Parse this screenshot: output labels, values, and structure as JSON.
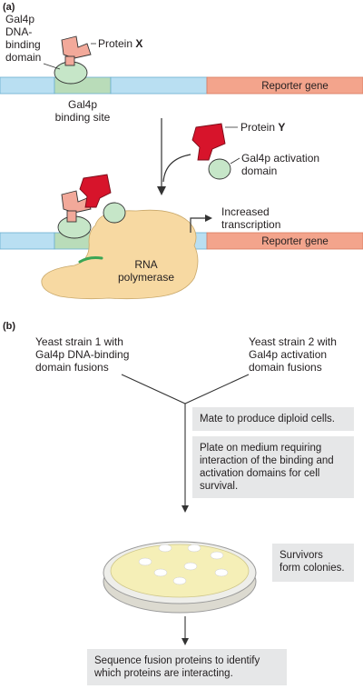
{
  "colors": {
    "dna_blue": "#b9dff2",
    "binding_site": "#b9dcb9",
    "reporter_red": "#f3a48c",
    "activation_green": "#c6e6c8",
    "protein_x": "#f2a99a",
    "protein_y": "#d7142b",
    "polymerase": "#f7d9a2",
    "box_gray": "#e6e7e8",
    "plate_agar": "#f5efb7"
  },
  "panel_a": {
    "label": "(a)",
    "gal4p_dna_binding_domain": [
      "Gal4p",
      "DNA-",
      "binding",
      "domain"
    ],
    "protein_x_prefix": "Protein ",
    "protein_x_letter": "X",
    "reporter_gene_top": "Reporter gene",
    "gal4p_binding_site": [
      "Gal4p",
      "binding site"
    ],
    "protein_y_prefix": "Protein ",
    "protein_y_letter": "Y",
    "gal4p_activation_domain": [
      "Gal4p activation",
      "domain"
    ],
    "increased_transcription": [
      "Increased",
      "transcription"
    ],
    "reporter_gene_bottom": "Reporter gene",
    "rna_polymerase": [
      "RNA",
      "polymerase"
    ]
  },
  "panel_b": {
    "label": "(b)",
    "strain_1": [
      "Yeast strain 1 with",
      "Gal4p DNA-binding",
      "domain fusions"
    ],
    "strain_2": [
      "Yeast strain 2 with",
      "Gal4p activation",
      "domain fusions"
    ],
    "step_mate": "Mate to produce diploid cells.",
    "step_plate": [
      "Plate on medium requiring",
      "interaction of the binding and",
      "activation domains for cell",
      "survival."
    ],
    "survivors": [
      "Survivors",
      "form colonies."
    ],
    "sequence": [
      "Sequence fusion proteins to identify",
      "which proteins are interacting."
    ]
  }
}
